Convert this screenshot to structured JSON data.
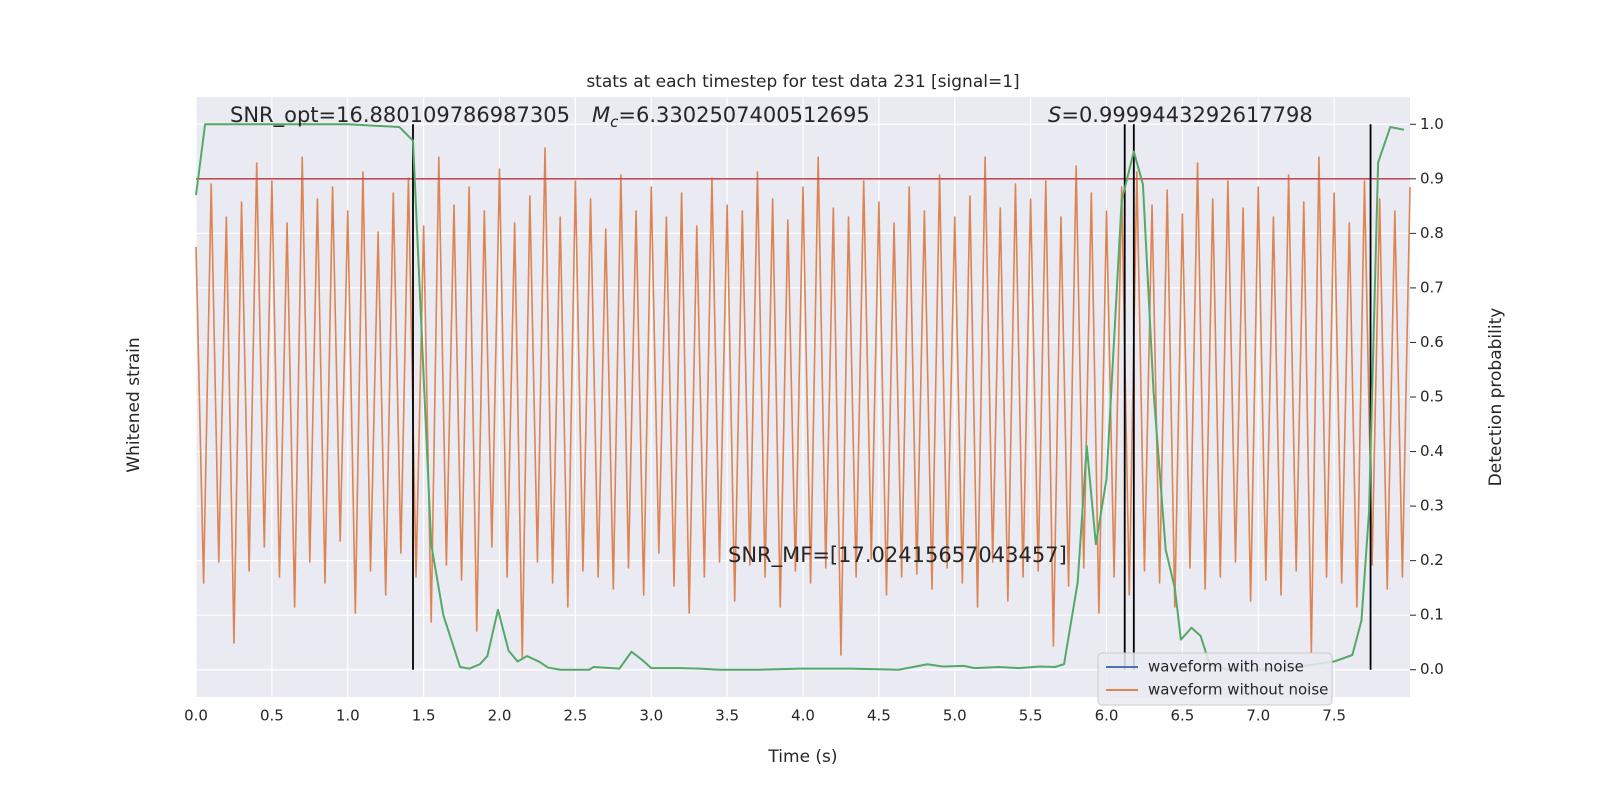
{
  "chart_data": {
    "type": "line",
    "title": "stats at each timestep for test data 231 [signal=1]",
    "xlabel": "Time (s)",
    "ylabel": "Whitened strain",
    "y2label": "Detection probability",
    "xlim": [
      0,
      8
    ],
    "xticks": [
      {
        "value": 0,
        "label": "0.0"
      },
      0.5,
      {
        "value": 1,
        "label": "1.0"
      },
      1.5,
      {
        "value": 2,
        "label": "2.0"
      },
      2.5,
      {
        "value": 3,
        "label": "3.0"
      },
      3.5,
      {
        "value": 4,
        "label": "4.0"
      },
      4.5,
      {
        "value": 5,
        "label": "5.0"
      },
      5.5,
      {
        "value": 6,
        "label": "6.0"
      },
      6.5,
      {
        "value": 7,
        "label": "7.0"
      },
      7.5
    ],
    "ylim": [
      -1,
      1
    ],
    "y2lim": [
      -0.05,
      1.05
    ],
    "y2ticks": [
      {
        "value": 0,
        "label": "0.0"
      },
      0.1,
      0.2,
      0.3,
      0.4,
      0.5,
      0.6,
      0.7,
      0.8,
      0.9,
      {
        "value": 1,
        "label": "1.0"
      }
    ],
    "grid": true,
    "legend": "lower right",
    "series": [
      {
        "name": "waveform with noise",
        "color": "#4c72b0"
      },
      {
        "name": "waveform without noise",
        "color": "#dd8452",
        "x": [
          0,
          0.05,
          0.1,
          0.15,
          0.2,
          0.25,
          0.3,
          0.35,
          0.4,
          0.45,
          0.5,
          0.55,
          0.6,
          0.65,
          0.7,
          0.75,
          0.8,
          0.85,
          0.9,
          0.95,
          1,
          1.05,
          1.1,
          1.15,
          1.2,
          1.25,
          1.3,
          1.35,
          1.4,
          1.45,
          1.5,
          1.55,
          1.6,
          1.65,
          1.7,
          1.75,
          1.8,
          1.85,
          1.9,
          1.95,
          2,
          2.05,
          2.1,
          2.15,
          2.2,
          2.25,
          2.3,
          2.35,
          2.4,
          2.45,
          2.5,
          2.55,
          2.6,
          2.65,
          2.7,
          2.75,
          2.8,
          2.85,
          2.9,
          2.95,
          3,
          3.05,
          3.1,
          3.15,
          3.2,
          3.25,
          3.3,
          3.35,
          3.4,
          3.45,
          3.5,
          3.55,
          3.6,
          3.65,
          3.7,
          3.75,
          3.8,
          3.85,
          3.9,
          3.95,
          4,
          4.05,
          4.1,
          4.15,
          4.2,
          4.25,
          4.3,
          4.35,
          4.4,
          4.45,
          4.5,
          4.55,
          4.6,
          4.65,
          4.7,
          4.75,
          4.8,
          4.85,
          4.9,
          4.95,
          5,
          5.05,
          5.1,
          5.15,
          5.2,
          5.25,
          5.3,
          5.35,
          5.4,
          5.45,
          5.5,
          5.55,
          5.6,
          5.65,
          5.7,
          5.75,
          5.8,
          5.85,
          5.9,
          5.95,
          6,
          6.05,
          6.1,
          6.15,
          6.2,
          6.25,
          6.3,
          6.35,
          6.4,
          6.45,
          6.5,
          6.55,
          6.6,
          6.65,
          6.7,
          6.75,
          6.8,
          6.85,
          6.9,
          6.95,
          7,
          7.05,
          7.1,
          7.15,
          7.2,
          7.25,
          7.3,
          7.35,
          7.4,
          7.45,
          7.5,
          7.55,
          7.6,
          7.65,
          7.7,
          7.75,
          7.8,
          7.85,
          7.9,
          7.95,
          8
        ],
        "values": [
          0.5,
          -0.62,
          0.71,
          -0.55,
          0.6,
          -0.82,
          0.65,
          -0.58,
          0.78,
          -0.5,
          0.72,
          -0.6,
          0.58,
          -0.7,
          0.8,
          -0.55,
          0.66,
          -0.62,
          0.7,
          -0.48,
          0.62,
          -0.72,
          0.75,
          -0.58,
          0.55,
          -0.66,
          0.68,
          -0.52,
          0.73,
          -0.6,
          0.57,
          -0.75,
          0.8,
          -0.56,
          0.64,
          -0.61,
          0.7,
          -0.78,
          0.62,
          -0.5,
          0.76,
          -0.6,
          0.58,
          -0.87,
          0.67,
          -0.55,
          0.83,
          -0.62,
          0.6,
          -0.7,
          0.72,
          -0.58,
          0.66,
          -0.6,
          0.56,
          -0.64,
          0.74,
          -0.57,
          0.62,
          -0.66,
          0.7,
          -0.52,
          0.6,
          -0.63,
          0.68,
          -0.72,
          0.57,
          -0.6,
          0.73,
          -0.55,
          0.64,
          -0.68,
          0.62,
          -0.56,
          0.75,
          -0.6,
          0.66,
          -0.7,
          0.59,
          -0.58,
          0.7,
          -0.62,
          0.8,
          -0.57,
          0.63,
          -0.86,
          0.6,
          -0.6,
          0.72,
          -0.54,
          0.65,
          -0.66,
          0.58,
          -0.6,
          0.7,
          -0.59,
          0.62,
          -0.64,
          0.74,
          -0.57,
          0.6,
          -0.62,
          0.67,
          -0.7,
          0.8,
          -0.55,
          0.63,
          -0.68,
          0.71,
          -0.6,
          0.66,
          -0.58,
          0.72,
          -0.83,
          0.6,
          -0.63,
          0.77,
          -0.57,
          0.68,
          -0.72,
          0.62,
          -0.6,
          0.7,
          -0.66,
          0.75,
          -0.58,
          0.64,
          -0.62,
          0.69,
          -0.7,
          0.61,
          -0.57,
          0.78,
          -0.64,
          0.66,
          -0.6,
          0.72,
          -0.55,
          0.63,
          -0.68,
          0.7,
          -0.61,
          0.6,
          -0.66,
          0.74,
          -0.58,
          0.65,
          -0.85,
          0.8,
          -0.6,
          0.68,
          -0.62,
          0.58,
          -0.7,
          0.72,
          -0.56,
          0.66,
          -0.64,
          0.62,
          -0.6,
          0.7
        ]
      },
      {
        "color": "#55a868",
        "axis": "y2",
        "x": [
          0,
          0.06,
          0.2,
          0.5,
          1.0,
          1.34,
          1.43,
          1.55,
          1.63,
          1.74,
          1.8,
          1.87,
          1.92,
          1.99,
          2.06,
          2.12,
          2.18,
          2.26,
          2.32,
          2.4,
          2.59,
          2.62,
          2.79,
          2.87,
          2.94,
          3.0,
          3.19,
          3.32,
          3.45,
          3.71,
          3.98,
          4.31,
          4.63,
          4.82,
          4.92,
          5.06,
          5.13,
          5.29,
          5.42,
          5.56,
          5.66,
          5.72,
          5.81,
          5.87,
          5.93,
          6.0,
          6.1,
          6.18,
          6.24,
          6.31,
          6.39,
          6.45,
          6.49,
          6.56,
          6.62,
          6.68,
          6.8,
          7.0,
          7.25,
          7.5,
          7.62,
          7.68,
          7.73,
          7.79,
          7.87,
          7.96
        ],
        "values": [
          0.87,
          1.0,
          1.0,
          1.0,
          1.0,
          0.995,
          0.97,
          0.23,
          0.1,
          0.005,
          0.002,
          0.01,
          0.025,
          0.11,
          0.035,
          0.015,
          0.025,
          0.015,
          0.004,
          0.0,
          0.0,
          0.005,
          0.002,
          0.033,
          0.018,
          0.003,
          0.003,
          0.002,
          0.0,
          0.0,
          0.002,
          0.002,
          0.0,
          0.01,
          0.006,
          0.007,
          0.003,
          0.005,
          0.003,
          0.006,
          0.005,
          0.01,
          0.16,
          0.41,
          0.23,
          0.35,
          0.86,
          0.95,
          0.89,
          0.51,
          0.22,
          0.15,
          0.055,
          0.077,
          0.062,
          0.01,
          0.0,
          0.0,
          0.005,
          0.015,
          0.027,
          0.09,
          0.29,
          0.93,
          0.995,
          0.99
        ]
      }
    ],
    "threshold": {
      "value": 0.9,
      "color": "#c44e52",
      "axis": "y2"
    },
    "vlines": {
      "x": [
        1.43,
        6.12,
        6.18,
        7.74
      ],
      "ymin": 0,
      "ymax": 1,
      "color": "#000000",
      "axis": "y2"
    },
    "annotations": [
      {
        "text": "SNR_opt=16.880109786987305"
      },
      {
        "symbol": "M",
        "sub": "c",
        "text": "=6.3302507400512695"
      },
      {
        "symbol": "S",
        "text": "=0.9999443292617798"
      },
      {
        "text": "SNR_MF=[17.02415657043457]"
      }
    ]
  }
}
